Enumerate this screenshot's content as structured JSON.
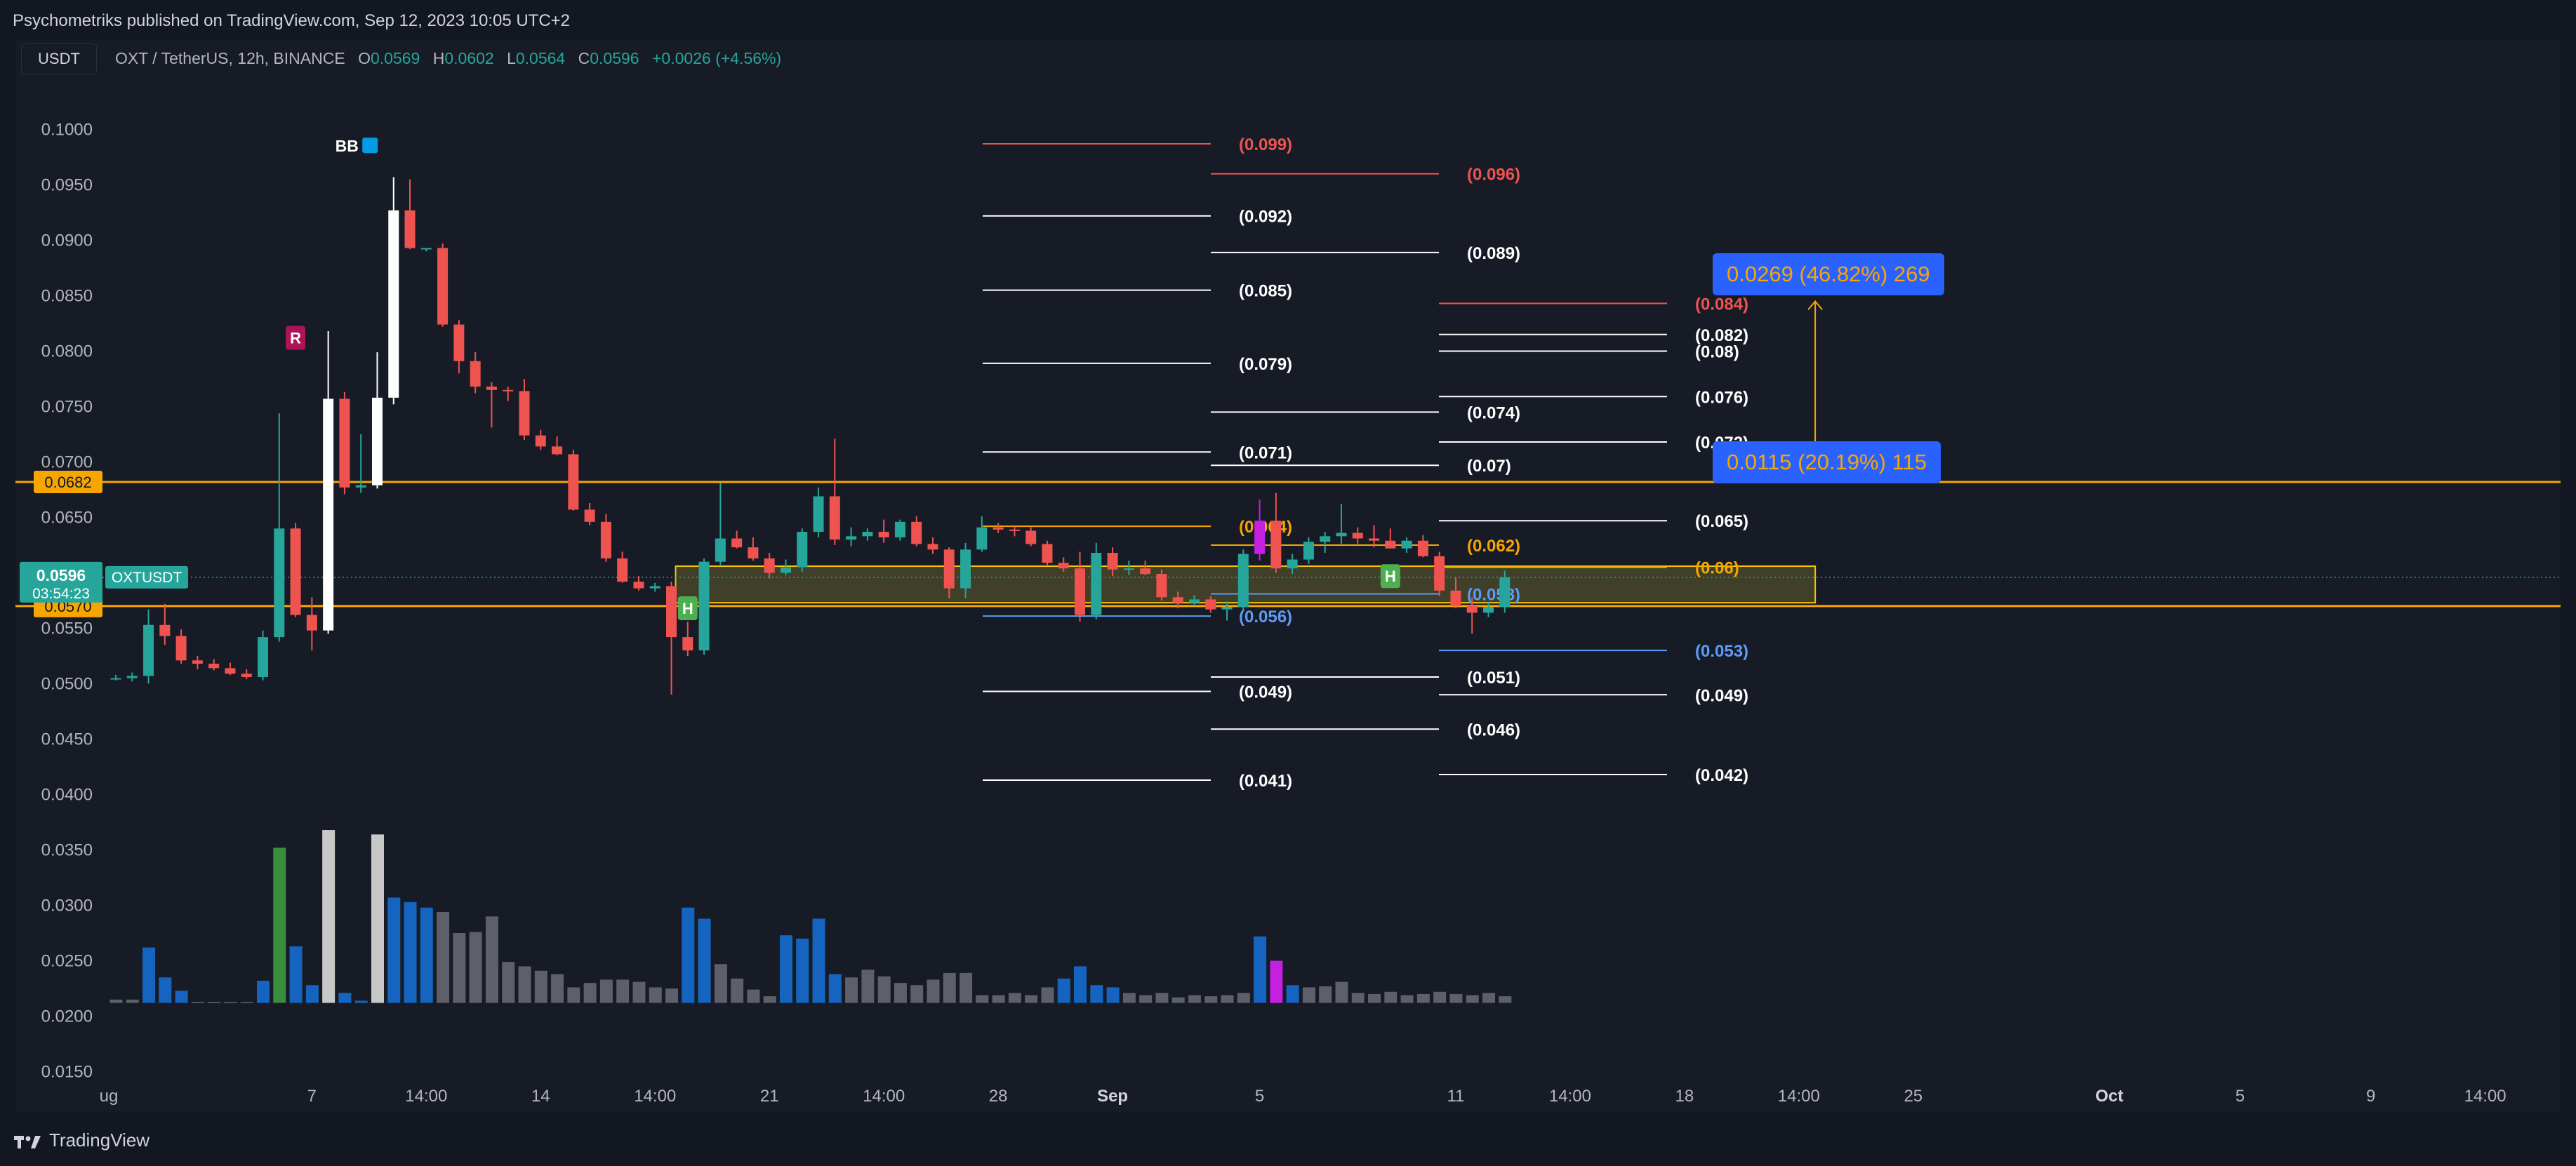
{
  "header": {
    "published": "Psychometriks published on TradingView.com, Sep 12, 2023 10:05 UTC+2",
    "currency_button": "USDT",
    "symbol_line": "OXT / TetherUS, 12h, BINANCE",
    "ohlc": {
      "o_label": "O",
      "o": "0.0569",
      "h_label": "H",
      "h": "0.0602",
      "l_label": "L",
      "l": "0.0564",
      "c_label": "C",
      "c": "0.0596",
      "change": "+0.0026 (+4.56%)"
    }
  },
  "footer": {
    "brand": "TradingView"
  },
  "colors": {
    "background": "#131722",
    "up": "#26a69a",
    "down": "#ef5350",
    "orange": "#f7a600",
    "blue_badge": "#2962ff",
    "volume_blue": "#1565c0",
    "volume_grey": "#5d606b"
  },
  "chart_data": {
    "type": "candlestick",
    "symbol": "OXTUSDT",
    "interval": "12h",
    "y_ticks": [
      "0.1000",
      "0.0950",
      "0.0900",
      "0.0850",
      "0.0800",
      "0.0750",
      "0.0700",
      "0.0650",
      "0.0600",
      "0.0550",
      "0.0500",
      "0.0450",
      "0.0400",
      "0.0350",
      "0.0300",
      "0.0250",
      "0.0200",
      "0.0150"
    ],
    "ylim": [
      0.013,
      0.104
    ],
    "x_ticks": [
      "ug",
      "7",
      "14:00",
      "14",
      "14:00",
      "21",
      "14:00",
      "28",
      "Sep",
      "5",
      "11",
      "14:00",
      "18",
      "14:00",
      "25",
      "Oct",
      "5",
      "9",
      "14:00"
    ],
    "x_tick_bar_index": [
      0,
      12,
      19,
      26,
      33,
      40,
      47,
      54,
      61,
      70,
      82,
      89,
      96,
      103,
      110,
      122,
      130,
      138,
      145
    ],
    "current_price": {
      "value": 0.0596,
      "label": "0.0596",
      "countdown": "03:54:23",
      "symbol": "OXTUSDT"
    },
    "horizontal_levels": [
      {
        "value": 0.0682,
        "label": "0.0682"
      },
      {
        "value": 0.057,
        "label": "0.0570"
      }
    ],
    "candles": [
      [
        0.0505,
        0.0508,
        0.0503,
        0.0505
      ],
      [
        0.0505,
        0.051,
        0.0502,
        0.0507
      ],
      [
        0.0507,
        0.0567,
        0.05,
        0.0553
      ],
      [
        0.0553,
        0.0572,
        0.0535,
        0.0543
      ],
      [
        0.0543,
        0.0549,
        0.0518,
        0.0521
      ],
      [
        0.0521,
        0.0525,
        0.0513,
        0.0518
      ],
      [
        0.0518,
        0.0522,
        0.0512,
        0.0514
      ],
      [
        0.0514,
        0.0519,
        0.0508,
        0.0509
      ],
      [
        0.0509,
        0.0513,
        0.0504,
        0.0506
      ],
      [
        0.0506,
        0.0548,
        0.0503,
        0.0542
      ],
      [
        0.0542,
        0.0744,
        0.0538,
        0.064
      ],
      [
        0.064,
        0.0645,
        0.056,
        0.0562
      ],
      [
        0.0562,
        0.0578,
        0.053,
        0.0548
      ],
      [
        0.0548,
        0.0818,
        0.0545,
        0.0757
      ],
      [
        0.0757,
        0.0763,
        0.0671,
        0.0677
      ],
      [
        0.0677,
        0.0725,
        0.0672,
        0.0679
      ],
      [
        0.0679,
        0.0799,
        0.0676,
        0.0758
      ],
      [
        0.0758,
        0.0957,
        0.0752,
        0.0927
      ],
      [
        0.0927,
        0.0955,
        0.0892,
        0.0893
      ],
      [
        0.0893,
        0.0893,
        0.089,
        0.0893
      ],
      [
        0.0893,
        0.0897,
        0.0822,
        0.0824
      ],
      [
        0.0824,
        0.0828,
        0.078,
        0.0791
      ],
      [
        0.0791,
        0.0799,
        0.0762,
        0.0768
      ],
      [
        0.0768,
        0.0772,
        0.0731,
        0.0765
      ],
      [
        0.0765,
        0.0768,
        0.0755,
        0.0764
      ],
      [
        0.0764,
        0.0775,
        0.072,
        0.0724
      ],
      [
        0.0724,
        0.0729,
        0.0711,
        0.0714
      ],
      [
        0.0714,
        0.0723,
        0.0706,
        0.0707
      ],
      [
        0.0707,
        0.0711,
        0.0656,
        0.0657
      ],
      [
        0.0657,
        0.0663,
        0.0643,
        0.0646
      ],
      [
        0.0646,
        0.0653,
        0.061,
        0.0613
      ],
      [
        0.0613,
        0.0619,
        0.0591,
        0.0592
      ],
      [
        0.0592,
        0.0597,
        0.0584,
        0.0586
      ],
      [
        0.0586,
        0.0591,
        0.0583,
        0.0588
      ],
      [
        0.0588,
        0.0592,
        0.049,
        0.0542
      ],
      [
        0.0542,
        0.0556,
        0.0525,
        0.053
      ],
      [
        0.053,
        0.0613,
        0.0526,
        0.061
      ],
      [
        0.061,
        0.0681,
        0.0606,
        0.0631
      ],
      [
        0.0631,
        0.0638,
        0.0622,
        0.0623
      ],
      [
        0.0623,
        0.0632,
        0.0611,
        0.0613
      ],
      [
        0.0613,
        0.0618,
        0.0595,
        0.06
      ],
      [
        0.06,
        0.0612,
        0.0598,
        0.0605
      ],
      [
        0.0605,
        0.064,
        0.0601,
        0.0637
      ],
      [
        0.0637,
        0.0677,
        0.0632,
        0.0669
      ],
      [
        0.0669,
        0.0721,
        0.0625,
        0.063
      ],
      [
        0.063,
        0.0641,
        0.0624,
        0.0633
      ],
      [
        0.0633,
        0.064,
        0.0629,
        0.0637
      ],
      [
        0.0637,
        0.0648,
        0.0627,
        0.0632
      ],
      [
        0.0632,
        0.0648,
        0.0629,
        0.0646
      ],
      [
        0.0646,
        0.0651,
        0.0624,
        0.0626
      ],
      [
        0.0626,
        0.0632,
        0.0617,
        0.0621
      ],
      [
        0.0621,
        0.0623,
        0.0577,
        0.0586
      ],
      [
        0.0586,
        0.0627,
        0.0577,
        0.0621
      ],
      [
        0.0621,
        0.0651,
        0.0619,
        0.0641
      ],
      [
        0.0641,
        0.0645,
        0.0636,
        0.0639
      ],
      [
        0.0639,
        0.0643,
        0.0633,
        0.0638
      ],
      [
        0.0638,
        0.0641,
        0.0624,
        0.0626
      ],
      [
        0.0626,
        0.0629,
        0.0607,
        0.0609
      ],
      [
        0.0609,
        0.0614,
        0.0601,
        0.0604
      ],
      [
        0.0604,
        0.0619,
        0.0556,
        0.0562
      ],
      [
        0.0562,
        0.0627,
        0.0558,
        0.0618
      ],
      [
        0.0618,
        0.0623,
        0.0597,
        0.0603
      ],
      [
        0.0603,
        0.0611,
        0.0598,
        0.0604
      ],
      [
        0.0604,
        0.0611,
        0.0598,
        0.0599
      ],
      [
        0.0599,
        0.0603,
        0.0575,
        0.0578
      ],
      [
        0.0578,
        0.0583,
        0.0568,
        0.0573
      ],
      [
        0.0573,
        0.058,
        0.057,
        0.0576
      ],
      [
        0.0576,
        0.0579,
        0.0564,
        0.0567
      ],
      [
        0.0567,
        0.0574,
        0.0557,
        0.0569
      ],
      [
        0.0569,
        0.0621,
        0.0566,
        0.0617
      ],
      [
        0.0617,
        0.0666,
        0.0611,
        0.0647
      ],
      [
        0.0647,
        0.0672,
        0.06,
        0.0604
      ],
      [
        0.0604,
        0.0617,
        0.0599,
        0.0612
      ],
      [
        0.0612,
        0.0632,
        0.0608,
        0.0628
      ],
      [
        0.0628,
        0.0637,
        0.0618,
        0.0633
      ],
      [
        0.0633,
        0.0662,
        0.0626,
        0.0636
      ],
      [
        0.0636,
        0.0641,
        0.0626,
        0.0631
      ],
      [
        0.0631,
        0.0643,
        0.0623,
        0.0629
      ],
      [
        0.0629,
        0.064,
        0.0622,
        0.0622
      ],
      [
        0.0622,
        0.0632,
        0.0618,
        0.0629
      ],
      [
        0.0629,
        0.0634,
        0.0614,
        0.0615
      ],
      [
        0.0615,
        0.0619,
        0.0579,
        0.0584
      ],
      [
        0.0584,
        0.0596,
        0.0568,
        0.057
      ],
      [
        0.057,
        0.0578,
        0.0545,
        0.0564
      ],
      [
        0.0564,
        0.0574,
        0.056,
        0.0569
      ],
      [
        0.0569,
        0.0602,
        0.0564,
        0.0596
      ]
    ],
    "volume_color_by_bar": [
      "grey",
      "grey",
      "blue",
      "blue",
      "blue",
      "grey",
      "grey",
      "grey",
      "grey",
      "blue",
      "green",
      "blue",
      "blue",
      "white",
      "blue",
      "blue",
      "white",
      "blue",
      "blue",
      "blue",
      "grey",
      "grey",
      "grey",
      "grey",
      "grey",
      "grey",
      "grey",
      "grey",
      "grey",
      "grey",
      "grey",
      "grey",
      "grey",
      "grey",
      "grey",
      "blue",
      "blue",
      "grey",
      "grey",
      "grey",
      "grey",
      "blue",
      "blue",
      "blue",
      "blue",
      "grey",
      "grey",
      "grey",
      "grey",
      "grey",
      "grey",
      "grey",
      "grey",
      "grey",
      "grey",
      "grey",
      "grey",
      "grey",
      "blue",
      "blue",
      "blue",
      "blue",
      "grey",
      "grey",
      "grey",
      "grey",
      "grey",
      "grey",
      "grey",
      "grey",
      "blue",
      "magenta",
      "blue",
      "grey",
      "grey",
      "grey",
      "grey",
      "grey",
      "grey",
      "grey",
      "grey",
      "grey",
      "grey",
      "grey",
      "grey",
      "grey"
    ],
    "volume": [
      0.0215,
      0.0215,
      0.0262,
      0.0235,
      0.0223,
      0.0213,
      0.0213,
      0.0213,
      0.0213,
      0.0232,
      0.0352,
      0.0263,
      0.0228,
      0.0368,
      0.0221,
      0.0214,
      0.0364,
      0.0307,
      0.0303,
      0.0298,
      0.0294,
      0.0275,
      0.0276,
      0.029,
      0.0249,
      0.0245,
      0.0241,
      0.0238,
      0.0226,
      0.023,
      0.0233,
      0.0233,
      0.0231,
      0.0226,
      0.0225,
      0.0298,
      0.0288,
      0.0247,
      0.0234,
      0.0224,
      0.0218,
      0.0273,
      0.027,
      0.0288,
      0.0238,
      0.0235,
      0.0242,
      0.0236,
      0.023,
      0.0228,
      0.0233,
      0.0239,
      0.0239,
      0.0219,
      0.0219,
      0.0221,
      0.0219,
      0.0226,
      0.0234,
      0.0245,
      0.0228,
      0.0226,
      0.0221,
      0.0219,
      0.0221,
      0.0217,
      0.0219,
      0.0218,
      0.0219,
      0.0221,
      0.0272,
      0.025,
      0.0228,
      0.0226,
      0.0227,
      0.0231,
      0.0221,
      0.022,
      0.0222,
      0.0219,
      0.022,
      0.0222,
      0.022,
      0.0219,
      0.0221,
      0.0218
    ],
    "fib_left": [
      {
        "value": 0.0987,
        "label": "(0.099)",
        "color": "#ef5350"
      },
      {
        "value": 0.0922,
        "label": "(0.092)",
        "color": "#ffffff"
      },
      {
        "value": 0.0855,
        "label": "(0.085)",
        "color": "#ffffff"
      },
      {
        "value": 0.0789,
        "label": "(0.079)",
        "color": "#ffffff"
      },
      {
        "value": 0.0709,
        "label": "(0.071)",
        "color": "#ffffff"
      },
      {
        "value": 0.0642,
        "label": "(0.064)",
        "color": "#f7a600"
      },
      {
        "value": 0.0561,
        "label": "(0.056)",
        "color": "#5b9cf6"
      },
      {
        "value": 0.0493,
        "label": "(0.049)",
        "color": "#ffffff"
      },
      {
        "value": 0.0413,
        "label": "(0.041)",
        "color": "#ffffff"
      }
    ],
    "fib_middle": [
      {
        "value": 0.096,
        "label": "(0.096)",
        "color": "#ef5350"
      },
      {
        "value": 0.0889,
        "label": "(0.089)",
        "color": "#ffffff"
      },
      {
        "value": 0.0745,
        "label": "(0.074)",
        "color": "#ffffff"
      },
      {
        "value": 0.0697,
        "label": "(0.07)",
        "color": "#ffffff"
      },
      {
        "value": 0.0625,
        "label": "(0.062)",
        "color": "#f7a600"
      },
      {
        "value": 0.0581,
        "label": "(0.058)",
        "color": "#5b9cf6"
      },
      {
        "value": 0.0506,
        "label": "(0.051)",
        "color": "#ffffff"
      },
      {
        "value": 0.0459,
        "label": "(0.046)",
        "color": "#ffffff"
      }
    ],
    "fib_right": [
      {
        "value": 0.0843,
        "label": "(0.084)",
        "color": "#ef5350"
      },
      {
        "value": 0.0815,
        "label": "(0.082)",
        "color": "#ffffff"
      },
      {
        "value": 0.08,
        "label": "(0.08)",
        "color": "#ffffff"
      },
      {
        "value": 0.0759,
        "label": "(0.076)",
        "color": "#ffffff"
      },
      {
        "value": 0.0718,
        "label": "(0.072)",
        "color": "#ffffff"
      },
      {
        "value": 0.0647,
        "label": "(0.065)",
        "color": "#ffffff"
      },
      {
        "value": 0.0605,
        "label": "(0.06)",
        "color": "#f7a600"
      },
      {
        "value": 0.053,
        "label": "(0.053)",
        "color": "#5b9cf6"
      },
      {
        "value": 0.049,
        "label": "(0.049)",
        "color": "#ffffff"
      },
      {
        "value": 0.0418,
        "label": "(0.042)",
        "color": "#ffffff"
      }
    ],
    "zone": {
      "top": 0.0606,
      "bottom": 0.0573,
      "from_bar": 34,
      "to_bar": 104
    },
    "projection": {
      "from": 0.0682,
      "to": 0.0845,
      "bar": 104
    },
    "badges": [
      {
        "name": "target-badge-1",
        "value": 0.0869,
        "main": "0.0269",
        "pct": "(46.82%)",
        "num": "269"
      },
      {
        "name": "target-badge-2",
        "value": 0.07,
        "main": "0.0115",
        "pct": "(20.19%)",
        "num": "115"
      }
    ],
    "markers": [
      {
        "text": "BB",
        "bar": 15,
        "value": 0.0985,
        "color": "#ffffff"
      },
      {
        "text": "R",
        "bar": 11,
        "value": 0.0812,
        "color": "#ad1457"
      },
      {
        "text": "H",
        "bar": 35,
        "value": 0.0568,
        "color": "#4caf50"
      },
      {
        "text": "H",
        "bar": 78,
        "value": 0.0597,
        "color": "#4caf50"
      }
    ]
  }
}
